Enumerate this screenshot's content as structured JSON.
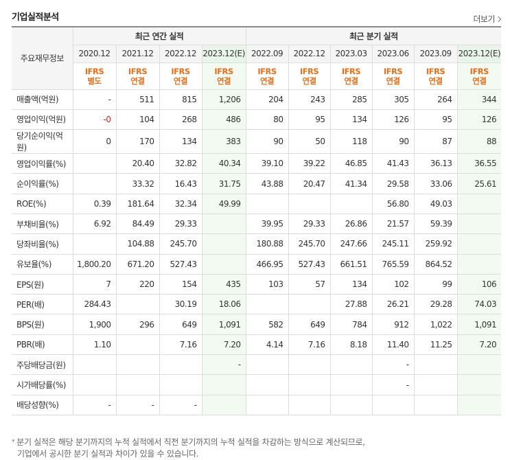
{
  "title": "기업실적분석",
  "more_label": "더보기",
  "header": {
    "row_label": "주요재무정보",
    "annual_group": "최근 연간 실적",
    "quarter_group": "최근 분기 실적",
    "periods": [
      {
        "label": "2020.12",
        "ifrs": "IFRS",
        "basis": "별도",
        "est": false
      },
      {
        "label": "2021.12",
        "ifrs": "IFRS",
        "basis": "연결",
        "est": false
      },
      {
        "label": "2022.12",
        "ifrs": "IFRS",
        "basis": "연결",
        "est": false
      },
      {
        "label": "2023.12(E)",
        "ifrs": "IFRS",
        "basis": "연결",
        "est": true
      },
      {
        "label": "2022.09",
        "ifrs": "IFRS",
        "basis": "연결",
        "est": false
      },
      {
        "label": "2022.12",
        "ifrs": "IFRS",
        "basis": "연결",
        "est": false
      },
      {
        "label": "2023.03",
        "ifrs": "IFRS",
        "basis": "연결",
        "est": false
      },
      {
        "label": "2023.06",
        "ifrs": "IFRS",
        "basis": "연결",
        "est": false
      },
      {
        "label": "2023.09",
        "ifrs": "IFRS",
        "basis": "연결",
        "est": false
      },
      {
        "label": "2023.12(E)",
        "ifrs": "IFRS",
        "basis": "연결",
        "est": true
      }
    ]
  },
  "rows": [
    {
      "label": "매출액(억원)",
      "group_start": true,
      "values": [
        "-",
        "511",
        "815",
        "1,206",
        "204",
        "243",
        "285",
        "305",
        "264",
        "344"
      ]
    },
    {
      "label": "영업이익(억원)",
      "values": [
        "-0",
        "104",
        "268",
        "486",
        "80",
        "95",
        "134",
        "126",
        "95",
        "126"
      ]
    },
    {
      "label": "당기순이익(억원)",
      "values": [
        "0",
        "170",
        "134",
        "383",
        "90",
        "50",
        "118",
        "90",
        "87",
        "88"
      ]
    },
    {
      "label": "영업이익률(%)",
      "group_start": true,
      "values": [
        "",
        "20.40",
        "32.82",
        "40.34",
        "39.10",
        "39.22",
        "46.85",
        "41.43",
        "36.13",
        "36.55"
      ]
    },
    {
      "label": "순이익률(%)",
      "values": [
        "",
        "33.32",
        "16.43",
        "31.75",
        "43.88",
        "20.47",
        "41.34",
        "29.58",
        "33.06",
        "25.61"
      ]
    },
    {
      "label": "ROE(%)",
      "values": [
        "0.39",
        "181.64",
        "32.34",
        "49.99",
        "",
        "",
        "",
        "56.80",
        "49.03",
        ""
      ]
    },
    {
      "label": "부채비율(%)",
      "group_start": true,
      "values": [
        "6.92",
        "84.49",
        "29.33",
        "",
        "39.95",
        "29.33",
        "26.86",
        "21.57",
        "59.39",
        ""
      ]
    },
    {
      "label": "당좌비율(%)",
      "values": [
        "",
        "104.88",
        "245.70",
        "",
        "180.88",
        "245.70",
        "247.66",
        "245.11",
        "259.92",
        ""
      ]
    },
    {
      "label": "유보율(%)",
      "values": [
        "1,800.20",
        "671.20",
        "527.43",
        "",
        "466.95",
        "527.43",
        "661.51",
        "765.59",
        "864.52",
        ""
      ]
    },
    {
      "label": "EPS(원)",
      "group_start": true,
      "values": [
        "7",
        "220",
        "154",
        "435",
        "103",
        "57",
        "134",
        "102",
        "99",
        "106"
      ]
    },
    {
      "label": "PER(배)",
      "values": [
        "284.43",
        "",
        "30.19",
        "18.06",
        "",
        "",
        "27.88",
        "26.21",
        "29.28",
        "74.03"
      ]
    },
    {
      "label": "BPS(원)",
      "values": [
        "1,900",
        "296",
        "649",
        "1,091",
        "582",
        "649",
        "784",
        "912",
        "1,022",
        "1,091"
      ]
    },
    {
      "label": "PBR(배)",
      "values": [
        "1.10",
        "",
        "7.16",
        "7.20",
        "4.14",
        "7.16",
        "8.18",
        "11.40",
        "11.25",
        "7.20"
      ]
    },
    {
      "label": "주당배당금(원)",
      "group_start": true,
      "values": [
        "",
        "",
        "",
        "-",
        "",
        "",
        "",
        "-",
        "",
        ""
      ]
    },
    {
      "label": "시가배당률(%)",
      "values": [
        "",
        "",
        "",
        "",
        "",
        "",
        "",
        "-",
        "",
        ""
      ]
    },
    {
      "label": "배당성향(%)",
      "values": [
        "-",
        "-",
        "-",
        "",
        "",
        "",
        "",
        "",
        "",
        ""
      ]
    }
  ],
  "note": {
    "star": "*",
    "line1": "분기 실적은 해당 분기까지의 누적 실적에서 직전 분기까지의 누적 실적을 차감하는 방식으로 계산되므로,",
    "line2": "기업에서 공시한 분기 실적과 차이가 있을 수 있습니다."
  },
  "colors": {
    "ifrs_text": "#e4701e",
    "estimate_bg": "#f3faf2",
    "negative": "#e02020",
    "header_bg": "#f5f5f5"
  }
}
